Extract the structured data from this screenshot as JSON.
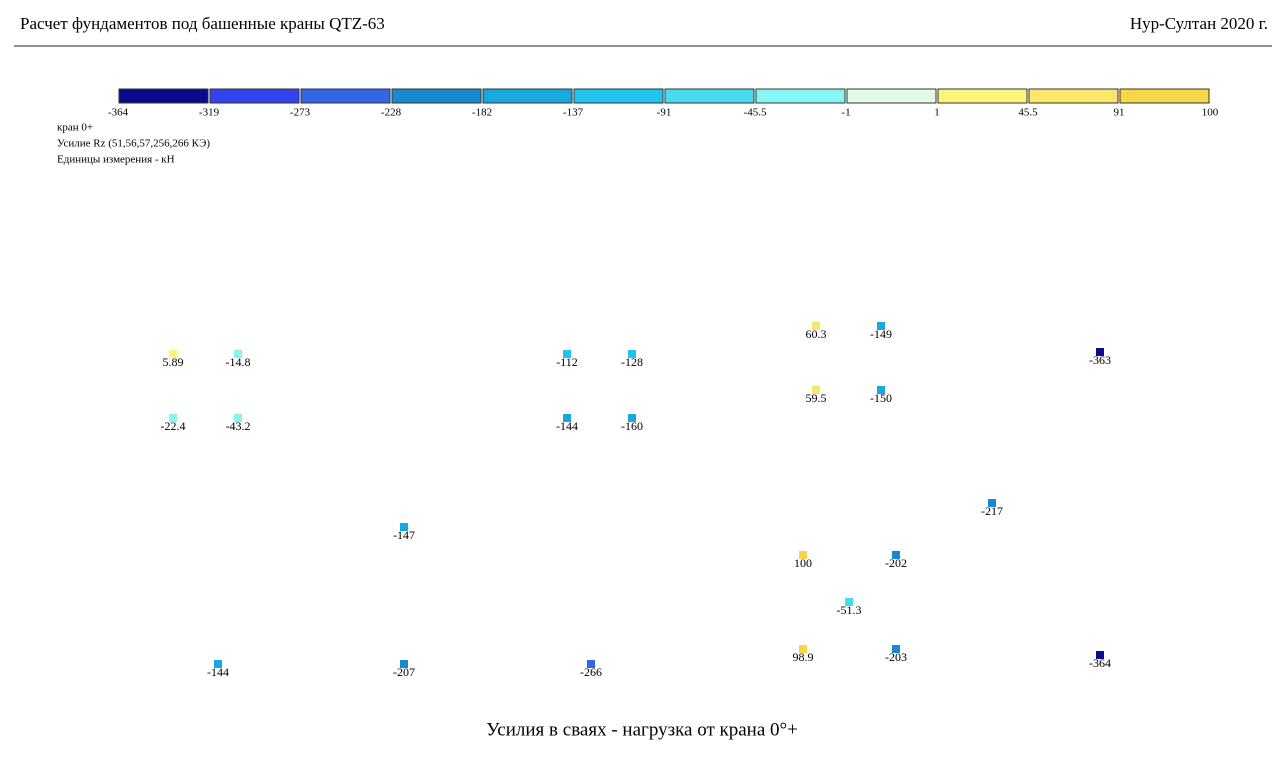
{
  "header": {
    "left": "Расчет фундаментов под башенные краны QTZ-63",
    "right": "Нур-Султан 2020 г."
  },
  "legend": {
    "bounds": [
      -364,
      -319,
      -273,
      -228,
      -182,
      -137,
      -91,
      -45.5,
      -1,
      1,
      45.5,
      91,
      100
    ],
    "colors": [
      "#0b0b8e",
      "#3344ee",
      "#3366e4",
      "#1a88cc",
      "#18a8dd",
      "#20c4ec",
      "#48dcf0",
      "#86f6f4",
      "#e2fae6",
      "#fcf57a",
      "#fae66a",
      "#f8d64a"
    ],
    "info": [
      "кран 0+",
      "Усилие Rz (51,56,57,256,266 КЭ)",
      "Единицы измерения - кН"
    ]
  },
  "piles": [
    5.89,
    -14.8,
    -22.4,
    -43.2,
    -112,
    -128,
    -144,
    -160,
    60.3,
    -149,
    59.5,
    -150,
    -363,
    -217,
    -147,
    100,
    -202,
    -51.3,
    98.9,
    -203,
    -364,
    -144,
    -207,
    -266
  ],
  "caption": "Усилия в сваях - нагрузка от крана 0°+"
}
